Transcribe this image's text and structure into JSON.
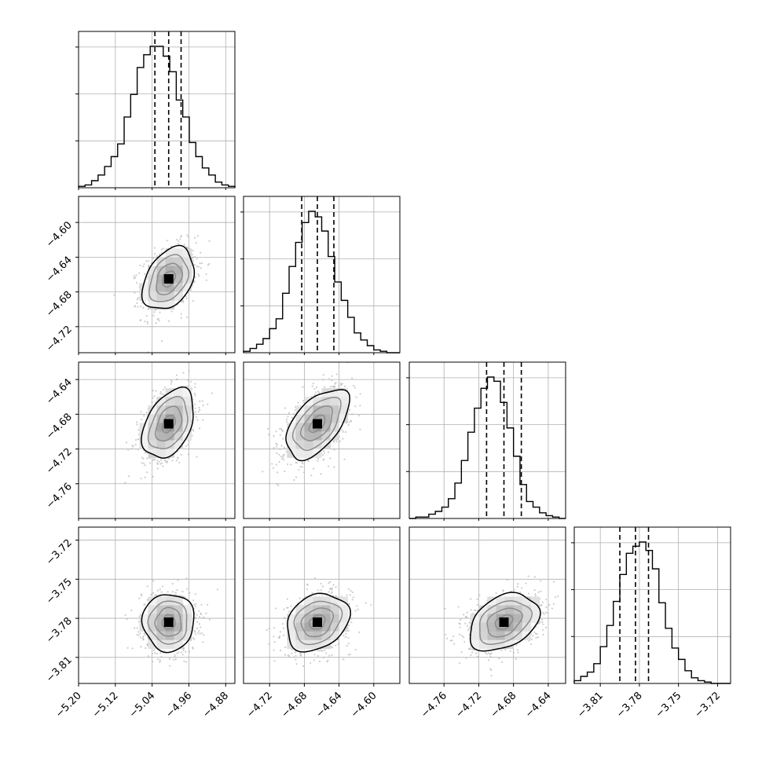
{
  "chart_data": {
    "type": "corner",
    "title": "",
    "parameters": [
      "",
      "",
      "",
      ""
    ],
    "ranges": [
      [
        -5.2,
        -4.86
      ],
      [
        -4.75,
        -4.57
      ],
      [
        -4.8,
        -4.62
      ],
      [
        -3.83,
        -3.71
      ]
    ],
    "ticks": [
      [
        -5.2,
        -5.12,
        -5.04,
        -4.96,
        -4.88
      ],
      [
        -4.72,
        -4.68,
        -4.64,
        -4.6
      ],
      [
        -4.76,
        -4.72,
        -4.68,
        -4.64
      ],
      [
        -3.81,
        -3.78,
        -3.75,
        -3.72
      ]
    ],
    "tick_labels": [
      [
        "−5.20",
        "−5.12",
        "−5.04",
        "−4.96",
        "−4.88"
      ],
      [
        "−4.72",
        "−4.68",
        "−4.64",
        "−4.60"
      ],
      [
        "−4.76",
        "−4.72",
        "−4.68",
        "−4.64"
      ],
      [
        "−3.81",
        "−3.78",
        "−3.75",
        "−3.72"
      ]
    ],
    "row_tick_labels": [
      [],
      [
        "−4.60",
        "−4.64",
        "−4.68",
        "−4.72"
      ],
      [
        "−4.64",
        "−4.68",
        "−4.72",
        "−4.76"
      ],
      [
        "−3.72",
        "−3.75",
        "−3.78",
        "−3.81"
      ]
    ],
    "quantile_lines": [
      [
        -5.034,
        -5.004,
        -4.977
      ],
      [
        -4.683,
        -4.665,
        -4.646
      ],
      [
        -4.711,
        -4.691,
        -4.671
      ],
      [
        -3.795,
        -3.783,
        -3.773
      ]
    ],
    "histograms": [
      {
        "lo": -5.2,
        "hi": -4.86,
        "counts": [
          1,
          2,
          5,
          9,
          15,
          22,
          31,
          50,
          66,
          85,
          94,
          100,
          100,
          93,
          82,
          62,
          50,
          32,
          22,
          14,
          9,
          4,
          2,
          1
        ]
      },
      {
        "lo": -4.75,
        "hi": -4.57,
        "counts": [
          1,
          3,
          6,
          10,
          17,
          24,
          42,
          61,
          78,
          92,
          100,
          96,
          86,
          68,
          50,
          37,
          25,
          14,
          9,
          5,
          2,
          1,
          0,
          0
        ]
      },
      {
        "lo": -4.8,
        "hi": -4.62,
        "counts": [
          0,
          1,
          1,
          3,
          5,
          8,
          14,
          25,
          41,
          61,
          78,
          92,
          100,
          97,
          82,
          64,
          44,
          24,
          12,
          8,
          4,
          2,
          1,
          0
        ]
      },
      {
        "lo": -3.83,
        "hi": -3.71,
        "counts": [
          2,
          5,
          8,
          14,
          26,
          41,
          58,
          77,
          92,
          97,
          100,
          94,
          81,
          57,
          39,
          25,
          17,
          9,
          4,
          2,
          1,
          0,
          0,
          0
        ]
      }
    ],
    "gaussians": [
      {
        "m": [
          -5.004,
          -4.665
        ],
        "s": [
          0.028,
          0.018
        ],
        "r": 0.35
      },
      {
        "m": [
          -5.004,
          -4.691
        ],
        "s": [
          0.028,
          0.02
        ],
        "r": 0.4
      },
      {
        "m": [
          -5.004,
          -3.783
        ],
        "s": [
          0.028,
          0.011
        ],
        "r": 0.0
      },
      {
        "m": [
          -4.665,
          -4.691
        ],
        "s": [
          0.018,
          0.02
        ],
        "r": 0.55
      },
      {
        "m": [
          -4.665,
          -3.783
        ],
        "s": [
          0.018,
          0.011
        ],
        "r": 0.25
      },
      {
        "m": [
          -4.691,
          -3.783
        ],
        "s": [
          0.02,
          0.011
        ],
        "r": 0.35
      }
    ],
    "contour_levels": [
      0.118,
      0.393,
      0.675,
      0.865
    ],
    "grid": true,
    "colors": {
      "points": "#b8b8b8",
      "lines": "#000000",
      "grid": "#b0b0b0"
    }
  }
}
